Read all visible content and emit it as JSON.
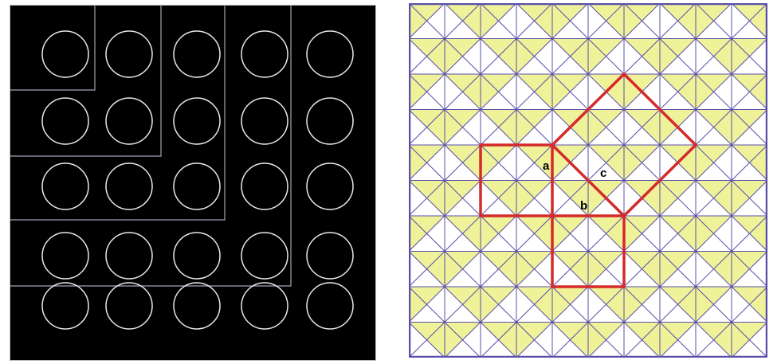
{
  "left_figure": {
    "background": "#000000",
    "border_color": "#b9b9c3",
    "circle_color": "#e8e8e8",
    "nested_outline_color": "#a4a4b4",
    "circle_rows": 5,
    "circle_cols": 5
  },
  "right_figure": {
    "grid_cells": 10,
    "grid_color": "#5a4fa8",
    "yellow_fill": "#f0f29a",
    "white_fill": "#ffffff",
    "outline_color": "#d42a2a",
    "labels": {
      "a": "a",
      "b": "b",
      "c": "c"
    }
  }
}
